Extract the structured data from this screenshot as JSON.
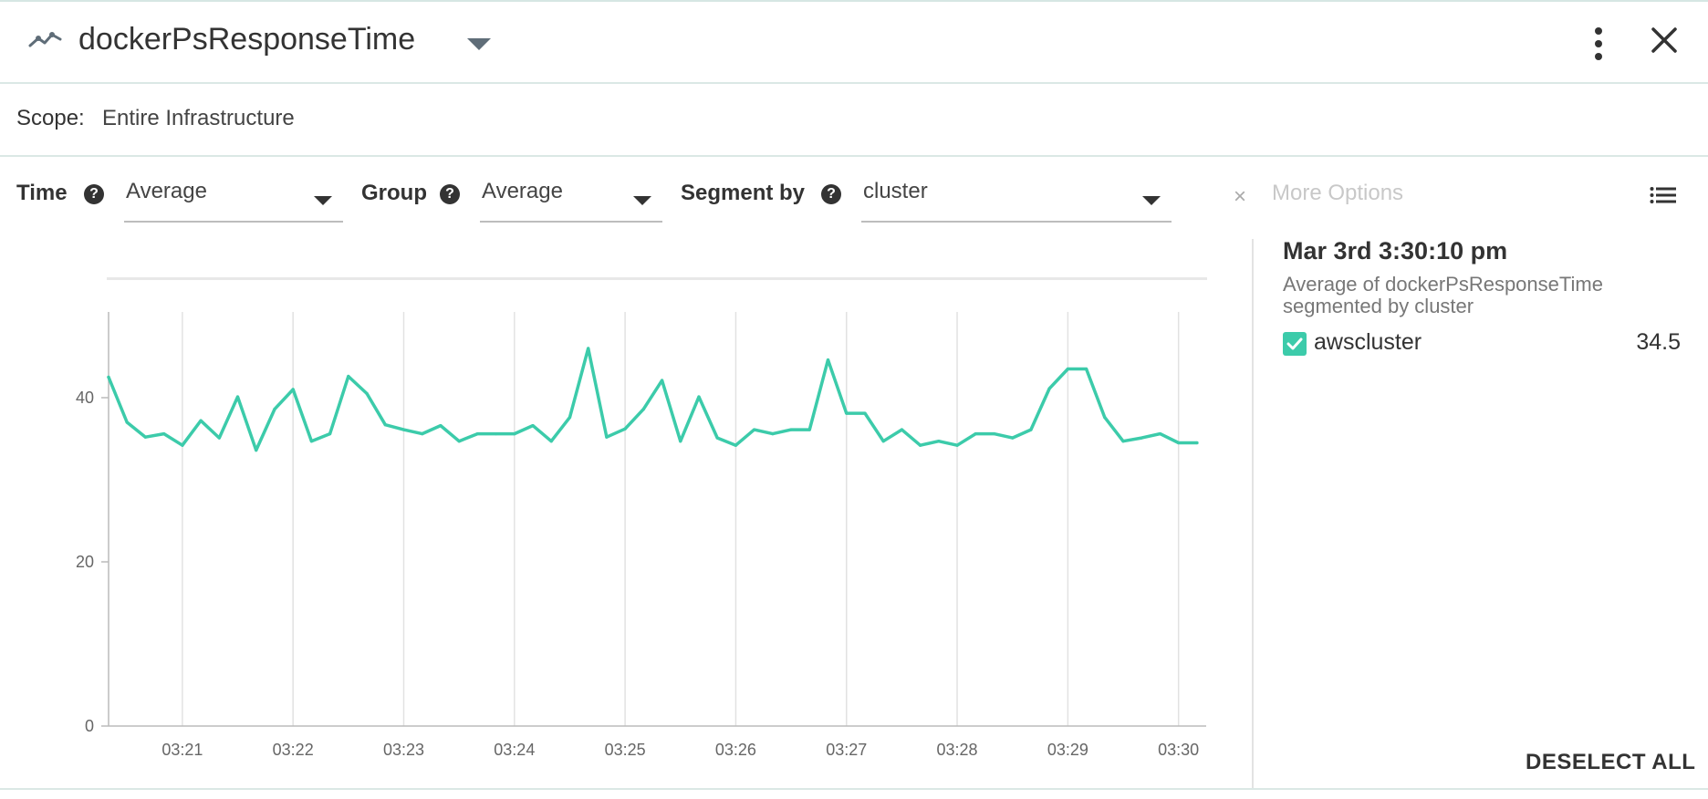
{
  "header": {
    "icon": "line-chart-icon",
    "title": "dockerPsResponseTime",
    "dropdown_icon": "caret-down-icon",
    "menu_icon": "more-vert-icon",
    "close_icon": "close-icon"
  },
  "scope": {
    "label": "Scope:",
    "value": "Entire Infrastructure"
  },
  "controls": {
    "time": {
      "label": "Time",
      "value": "Average"
    },
    "group": {
      "label": "Group",
      "value": "Average"
    },
    "segment": {
      "label": "Segment by",
      "value": "cluster"
    },
    "more_options": "More Options",
    "help_glyph": "?",
    "clear_glyph": "×",
    "list_icon": "list-icon"
  },
  "legend": {
    "timestamp": "Mar 3rd 3:30:10 pm",
    "description": "Average of dockerPsResponseTime segmented by cluster",
    "items": [
      {
        "name": "awscluster",
        "value": "34.5",
        "checked": true
      }
    ],
    "deselect_all": "DESELECT ALL"
  },
  "colors": {
    "series": "#3ccbaa",
    "accent": "#3ccbaa"
  },
  "chart_data": {
    "type": "line",
    "title": "",
    "xlabel": "",
    "ylabel": "",
    "ylim": [
      0,
      50
    ],
    "yticks": [
      0,
      20,
      40
    ],
    "xlim": [
      "03:20:20",
      "03:30:15"
    ],
    "xticks": [
      "03:21",
      "03:22",
      "03:23",
      "03:24",
      "03:25",
      "03:26",
      "03:27",
      "03:28",
      "03:29",
      "03:30"
    ],
    "grid": "vertical",
    "legend": "right panel",
    "series": [
      {
        "name": "awscluster",
        "x": [
          "03:20:20",
          "03:20:30",
          "03:20:40",
          "03:20:50",
          "03:21:00",
          "03:21:10",
          "03:21:20",
          "03:21:30",
          "03:21:40",
          "03:21:50",
          "03:22:00",
          "03:22:10",
          "03:22:20",
          "03:22:30",
          "03:22:40",
          "03:22:50",
          "03:23:00",
          "03:23:10",
          "03:23:20",
          "03:23:30",
          "03:23:40",
          "03:23:50",
          "03:24:00",
          "03:24:10",
          "03:24:20",
          "03:24:30",
          "03:24:40",
          "03:24:50",
          "03:25:00",
          "03:25:10",
          "03:25:20",
          "03:25:30",
          "03:25:40",
          "03:25:50",
          "03:26:00",
          "03:26:10",
          "03:26:20",
          "03:26:30",
          "03:26:40",
          "03:26:50",
          "03:27:00",
          "03:27:10",
          "03:27:20",
          "03:27:30",
          "03:27:40",
          "03:27:50",
          "03:28:00",
          "03:28:10",
          "03:28:20",
          "03:28:30",
          "03:28:40",
          "03:28:50",
          "03:29:00",
          "03:29:10",
          "03:29:20",
          "03:29:30",
          "03:29:40",
          "03:29:50",
          "03:30:00",
          "03:30:10"
        ],
        "y": [
          42.5,
          37.0,
          35.2,
          35.6,
          34.2,
          37.2,
          35.1,
          40.1,
          33.6,
          38.6,
          41.0,
          34.7,
          35.6,
          42.6,
          40.5,
          36.7,
          36.1,
          35.6,
          36.6,
          34.7,
          35.6,
          35.6,
          35.6,
          36.6,
          34.7,
          37.6,
          46.0,
          35.2,
          36.2,
          38.6,
          42.1,
          34.7,
          40.1,
          35.1,
          34.2,
          36.1,
          35.6,
          36.1,
          36.1,
          44.6,
          38.1,
          38.1,
          34.7,
          36.1,
          34.2,
          34.7,
          34.2,
          35.6,
          35.6,
          35.1,
          36.1,
          41.1,
          43.5,
          43.5,
          37.6,
          34.7,
          35.1,
          35.6,
          34.5,
          34.5
        ]
      }
    ]
  }
}
